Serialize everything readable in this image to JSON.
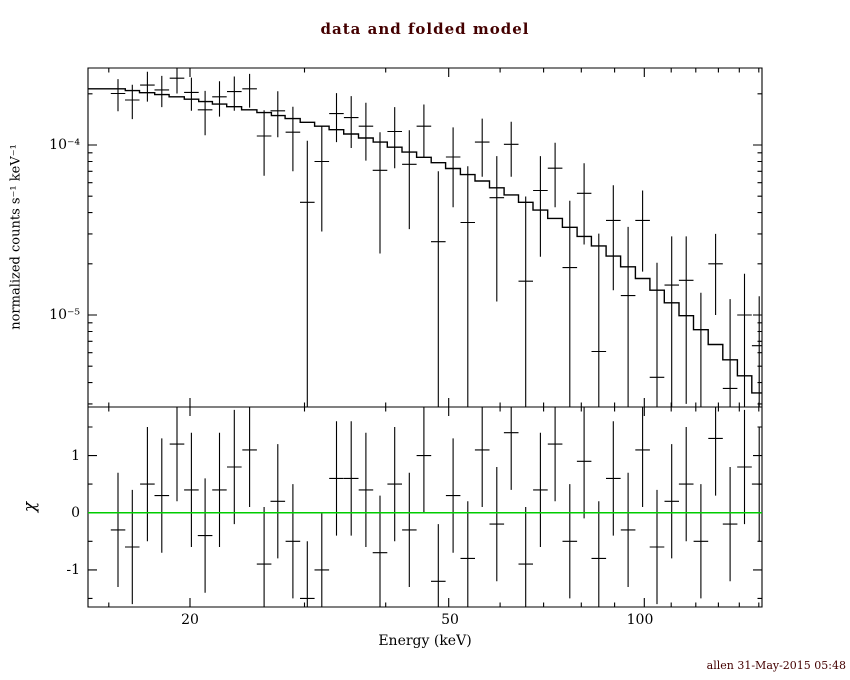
{
  "footer": "allen 31-May-2015 05:48",
  "colors": {
    "foreground": "#000000",
    "model_line": "#000000",
    "zero_line": "#00cc00",
    "title_text": "#440000"
  },
  "chart_data": [
    {
      "type": "scatter",
      "panel": "spectrum",
      "title": "data and folded model",
      "xlabel": "Energy (keV)",
      "ylabel": "normalized counts s⁻¹ keV⁻¹",
      "xscale": "log",
      "yscale": "log",
      "xlim": [
        14,
        152.5
      ],
      "ylim": [
        2.9e-06,
        0.000284
      ],
      "grid": false,
      "legend": "none",
      "x_tick_labels": [
        "20",
        "50",
        "100"
      ],
      "x_ticks_major": [
        20,
        50,
        100
      ],
      "x_ticks_minor": [
        15,
        30,
        40,
        60,
        70,
        80,
        90,
        110,
        120,
        130,
        140,
        150
      ],
      "y_tick_labels": [
        "10⁻⁴",
        "10⁻⁵"
      ],
      "y_ticks_major": [
        0.0001,
        1e-05
      ],
      "y_ticks_minor": [
        0.0002,
        2e-05,
        3e-05,
        4e-05,
        5e-05,
        6e-05,
        7e-05,
        8e-05,
        9e-05,
        3e-06,
        4e-06,
        5e-06,
        6e-06,
        7e-06,
        8e-06,
        9e-06
      ],
      "bin_width_ratio": 1.053,
      "energies_keV": [
        15.5,
        16.3,
        17.2,
        18.1,
        19.1,
        20.1,
        21.1,
        22.2,
        23.4,
        24.7,
        26.0,
        27.3,
        28.8,
        30.3,
        31.9,
        33.6,
        35.4,
        37.3,
        39.2,
        41.3,
        43.5,
        45.8,
        48.2,
        50.8,
        53.5,
        56.3,
        59.3,
        62.4,
        65.7,
        69.2,
        72.9,
        76.8,
        80.8,
        85.1,
        89.6,
        94.4,
        99.4,
        104.6,
        110.2,
        116.0,
        122.2,
        128.7,
        135.5,
        142.6,
        150.2
      ],
      "counts": [
        0.000201,
        0.000184,
        0.000225,
        0.000211,
        0.000247,
        0.000204,
        0.000161,
        0.000192,
        0.000206,
        0.000214,
        0.000113,
        0.000159,
        0.000119,
        4.6e-05,
        8e-05,
        0.000153,
        0.000145,
        0.000129,
        7.1e-05,
        0.00012,
        7.7e-05,
        0.000129,
        2.7e-05,
        8.5e-05,
        3.5e-05,
        0.000104,
        4.9e-05,
        0.000101,
        1.58e-05,
        5.4e-05,
        7.3e-05,
        1.9e-05,
        5.2e-05,
        6.1e-06,
        3.6e-05,
        1.3e-05,
        3.6e-05,
        4.3e-06,
        1.5e-05,
        1.6e-05,
        2.5e-06,
        2e-05,
        3.7e-06,
        1e-05,
        6.6e-06
      ],
      "errors": [
        4.3e-05,
        4.2e-05,
        4.5e-05,
        4.4e-05,
        4.6e-05,
        4.5e-05,
        4.7e-05,
        4.5e-05,
        4.7e-05,
        4.8e-05,
        4.7e-05,
        4.8e-05,
        4.9e-05,
        6e-05,
        4.9e-05,
        4.9e-05,
        4.9e-05,
        4.8e-05,
        4.8e-05,
        4.7e-05,
        4.5e-05,
        4.4e-05,
        4.3e-05,
        4.2e-05,
        4e-05,
        3.9e-05,
        3.7e-05,
        3.6e-05,
        3.4e-05,
        3.2e-05,
        3e-05,
        2.8e-05,
        2.6e-05,
        2.4e-05,
        2.2e-05,
        2e-05,
        1.8e-05,
        1.6e-05,
        1.4e-05,
        1.3e-05,
        1.1e-05,
        1e-05,
        8.7e-06,
        7.5e-06,
        6.3e-06
      ],
      "model": [
        0.000214,
        0.000209,
        0.000203,
        0.000198,
        0.000192,
        0.000186,
        0.00018,
        0.000174,
        0.000168,
        0.000161,
        0.000155,
        0.000149,
        0.000143,
        0.000136,
        0.000129,
        0.000123,
        0.000116,
        0.00011,
        0.000104,
        9.71e-05,
        9.08e-05,
        8.47e-05,
        7.87e-05,
        7.27e-05,
        6.7e-05,
        6.14e-05,
        5.6e-05,
        5.09e-05,
        4.6e-05,
        4.14e-05,
        3.7e-05,
        3.28e-05,
        2.9e-05,
        2.55e-05,
        2.22e-05,
        1.92e-05,
        1.64e-05,
        1.4e-05,
        1.18e-05,
        9.9e-06,
        8.19e-06,
        6.71e-06,
        5.45e-06,
        4.39e-06,
        3.48e-06
      ]
    },
    {
      "type": "scatter",
      "panel": "residuals",
      "ylabel": "χ",
      "xscale": "log",
      "yscale": "linear",
      "ylim": [
        -1.65,
        1.85
      ],
      "y_tick_labels": [
        "1",
        "0",
        "-1"
      ],
      "y_ticks_major": [
        1,
        0,
        -1
      ],
      "y_ticks_minor": [
        1.5,
        0.5,
        -0.5,
        -1.5
      ],
      "zero_line": 0,
      "chi": [
        -0.3,
        -0.6,
        0.5,
        0.3,
        1.2,
        0.4,
        -0.4,
        0.4,
        0.8,
        1.1,
        -0.9,
        0.2,
        -0.5,
        -1.5,
        -1.0,
        0.6,
        0.6,
        0.4,
        -0.7,
        0.5,
        -0.3,
        1.0,
        -1.2,
        0.3,
        -0.8,
        1.1,
        -0.2,
        1.4,
        -0.9,
        0.4,
        1.2,
        -0.5,
        0.9,
        -0.8,
        0.6,
        -0.3,
        1.1,
        -0.6,
        0.2,
        0.5,
        -0.5,
        1.3,
        -0.2,
        0.8,
        0.5
      ],
      "chi_error": 1
    }
  ]
}
